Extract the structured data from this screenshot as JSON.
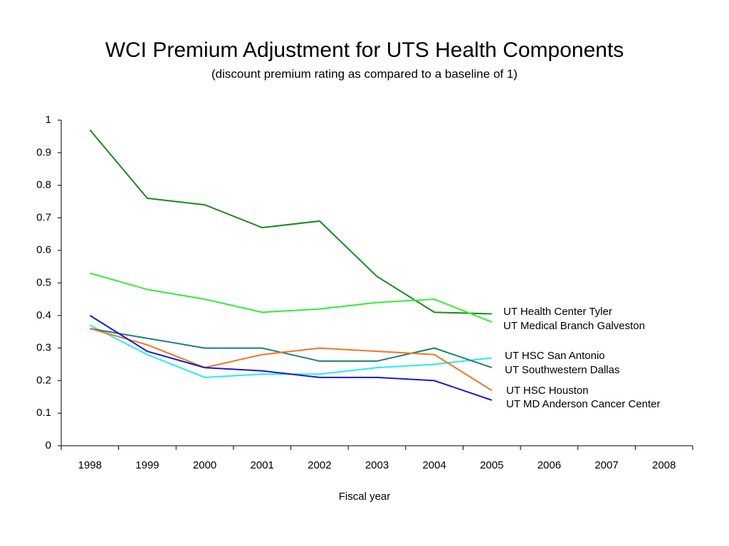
{
  "chart_data": {
    "type": "line",
    "title": "WCI Premium Adjustment for UTS Health Components",
    "subtitle": "(discount premium rating as compared to a baseline of 1)",
    "x_label": "Fiscal year",
    "categories": [
      "1998",
      "1999",
      "2000",
      "2001",
      "2002",
      "2003",
      "2004",
      "2005",
      "2006",
      "2007",
      "2008"
    ],
    "ylim": [
      0,
      1
    ],
    "yticks": [
      0,
      0.1,
      0.2,
      0.3,
      0.4,
      0.5,
      0.6,
      0.7,
      0.8,
      0.9,
      1
    ],
    "grid": false,
    "series": [
      {
        "name": "UT Health Center Tyler",
        "color": "#1a8a1a",
        "values": [
          0.97,
          0.76,
          0.74,
          0.67,
          0.69,
          0.52,
          0.41,
          0.405,
          null,
          null,
          null
        ]
      },
      {
        "name": "UT Medical Branch Galveston",
        "color": "#33ee33",
        "values": [
          0.53,
          0.48,
          0.45,
          0.41,
          0.42,
          0.44,
          0.45,
          0.38,
          null,
          null,
          null
        ]
      },
      {
        "name": "UT HSC San Antonio",
        "color": "#22eeee",
        "values": [
          0.37,
          0.28,
          0.21,
          0.22,
          0.22,
          0.24,
          0.25,
          0.27,
          null,
          null,
          null
        ]
      },
      {
        "name": "UT Southwestern Dallas",
        "color": "#1a7f7f",
        "values": [
          0.36,
          0.33,
          0.3,
          0.3,
          0.26,
          0.26,
          0.3,
          0.24,
          null,
          null,
          null
        ]
      },
      {
        "name": "UT HSC Houston",
        "color": "#ee7722",
        "values": [
          0.36,
          0.31,
          0.24,
          0.28,
          0.3,
          0.29,
          0.28,
          0.17,
          null,
          null,
          null
        ]
      },
      {
        "name": "UT MD Anderson Cancer Center",
        "color": "#1a1acc",
        "values": [
          0.4,
          0.29,
          0.24,
          0.23,
          0.21,
          0.21,
          0.2,
          0.14,
          null,
          null,
          null
        ]
      }
    ]
  }
}
